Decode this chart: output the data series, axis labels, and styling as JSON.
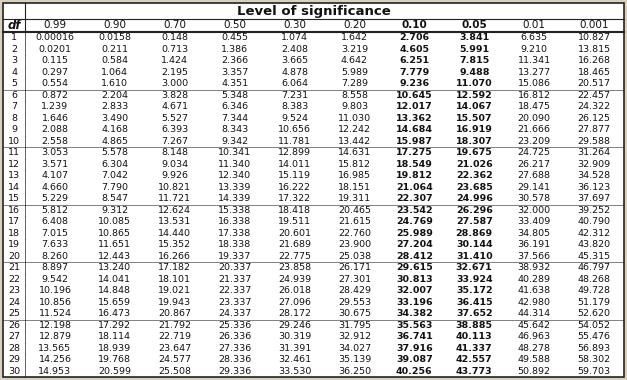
{
  "title": "Level of significance",
  "col_headers": [
    "0.99",
    "0.90",
    "0.70",
    "0.50",
    "0.30",
    "0.20",
    "0.10",
    "0.05",
    "0.01",
    "0.001"
  ],
  "df_col": "df",
  "rows": [
    [
      1,
      "0.00016",
      "0.0158",
      "0.148",
      "0.455",
      "1.074",
      "1.642",
      "2.706",
      "3.841",
      "6.635",
      "10.827"
    ],
    [
      2,
      "0.0201",
      "0.211",
      "0.713",
      "1.386",
      "2.408",
      "3.219",
      "4.605",
      "5.991",
      "9.210",
      "13.815"
    ],
    [
      3,
      "0.115",
      "0.584",
      "1.424",
      "2.366",
      "3.665",
      "4.642",
      "6.251",
      "7.815",
      "11.341",
      "16.268"
    ],
    [
      4,
      "0.297",
      "1.064",
      "2.195",
      "3.357",
      "4.878",
      "5.989",
      "7.779",
      "9.488",
      "13.277",
      "18.465"
    ],
    [
      5,
      "0.554",
      "1.610",
      "3.000",
      "4.351",
      "6.064",
      "7.289",
      "9.236",
      "11.070",
      "15.086",
      "20.517"
    ],
    [
      6,
      "0.872",
      "2.204",
      "3.828",
      "5.348",
      "7.231",
      "8.558",
      "10.645",
      "12.592",
      "16.812",
      "22.457"
    ],
    [
      7,
      "1.239",
      "2.833",
      "4.671",
      "6.346",
      "8.383",
      "9.803",
      "12.017",
      "14.067",
      "18.475",
      "24.322"
    ],
    [
      8,
      "1.646",
      "3.490",
      "5.527",
      "7.344",
      "9.524",
      "11.030",
      "13.362",
      "15.507",
      "20.090",
      "26.125"
    ],
    [
      9,
      "2.088",
      "4.168",
      "6.393",
      "8.343",
      "10.656",
      "12.242",
      "14.684",
      "16.919",
      "21.666",
      "27.877"
    ],
    [
      10,
      "2.558",
      "4.865",
      "7.267",
      "9.342",
      "11.781",
      "13.442",
      "15.987",
      "18.307",
      "23.209",
      "29.588"
    ],
    [
      11,
      "3.053",
      "5.578",
      "8.148",
      "10.341",
      "12.899",
      "14.631",
      "17.275",
      "19.675",
      "24.725",
      "31.264"
    ],
    [
      12,
      "3.571",
      "6.304",
      "9.034",
      "11.340",
      "14.011",
      "15.812",
      "18.549",
      "21.026",
      "26.217",
      "32.909"
    ],
    [
      13,
      "4.107",
      "7.042",
      "9.926",
      "12.340",
      "15.119",
      "16.985",
      "19.812",
      "22.362",
      "27.688",
      "34.528"
    ],
    [
      14,
      "4.660",
      "7.790",
      "10.821",
      "13.339",
      "16.222",
      "18.151",
      "21.064",
      "23.685",
      "29.141",
      "36.123"
    ],
    [
      15,
      "5.229",
      "8.547",
      "11.721",
      "14.339",
      "17.322",
      "19.311",
      "22.307",
      "24.996",
      "30.578",
      "37.697"
    ],
    [
      16,
      "5.812",
      "9.312",
      "12.624",
      "15.338",
      "18.418",
      "20.465",
      "23.542",
      "26.296",
      "32.000",
      "39.252"
    ],
    [
      17,
      "6.408",
      "10.085",
      "13.531",
      "16.338",
      "19.511",
      "21.615",
      "24.769",
      "27.587",
      "33.409",
      "40.790"
    ],
    [
      18,
      "7.015",
      "10.865",
      "14.440",
      "17.338",
      "20.601",
      "22.760",
      "25.989",
      "28.869",
      "34.805",
      "42.312"
    ],
    [
      19,
      "7.633",
      "11.651",
      "15.352",
      "18.338",
      "21.689",
      "23.900",
      "27.204",
      "30.144",
      "36.191",
      "43.820"
    ],
    [
      20,
      "8.260",
      "12.443",
      "16.266",
      "19.337",
      "22.775",
      "25.038",
      "28.412",
      "31.410",
      "37.566",
      "45.315"
    ],
    [
      21,
      "8.897",
      "13.240",
      "17.182",
      "20.337",
      "23.858",
      "26.171",
      "29.615",
      "32.671",
      "38.932",
      "46.797"
    ],
    [
      22,
      "9.542",
      "14.041",
      "18.101",
      "21.337",
      "24.939",
      "27.301",
      "30.813",
      "33.924",
      "40.289",
      "48.268"
    ],
    [
      23,
      "10.196",
      "14.848",
      "19.021",
      "22.337",
      "26.018",
      "28.429",
      "32.007",
      "35.172",
      "41.638",
      "49.728"
    ],
    [
      24,
      "10.856",
      "15.659",
      "19.943",
      "23.337",
      "27.096",
      "29.553",
      "33.196",
      "36.415",
      "42.980",
      "51.179"
    ],
    [
      25,
      "11.524",
      "16.473",
      "20.867",
      "24.337",
      "28.172",
      "30.675",
      "34.382",
      "37.652",
      "44.314",
      "52.620"
    ],
    [
      26,
      "12.198",
      "17.292",
      "21.792",
      "25.336",
      "29.246",
      "31.795",
      "35.563",
      "38.885",
      "45.642",
      "54.052"
    ],
    [
      27,
      "12.879",
      "18.114",
      "22.719",
      "26.336",
      "30.319",
      "32.912",
      "36.741",
      "40.113",
      "46.963",
      "55.476"
    ],
    [
      28,
      "13.565",
      "18.939",
      "23.647",
      "27.336",
      "31.391",
      "34.027",
      "37.916",
      "41.337",
      "48.278",
      "56.893"
    ],
    [
      29,
      "14.256",
      "19.768",
      "24.577",
      "28.336",
      "32.461",
      "35.139",
      "39.087",
      "42.557",
      "49.588",
      "58.302"
    ],
    [
      30,
      "14.953",
      "20.599",
      "25.508",
      "29.336",
      "33.530",
      "36.250",
      "40.256",
      "43.773",
      "50.892",
      "59.703"
    ]
  ],
  "group_separators": [
    5,
    10,
    15,
    20,
    25
  ],
  "bg_color": "#d9d0be",
  "table_bg": "#e8e0ce",
  "line_color": "#222222",
  "text_color": "#111111",
  "bold_header_cols": [
    "0.10",
    "0.05"
  ],
  "title_fontsize": 9.5,
  "header_fontsize": 7.5,
  "cell_fontsize": 6.8,
  "df_fontsize": 8.5
}
